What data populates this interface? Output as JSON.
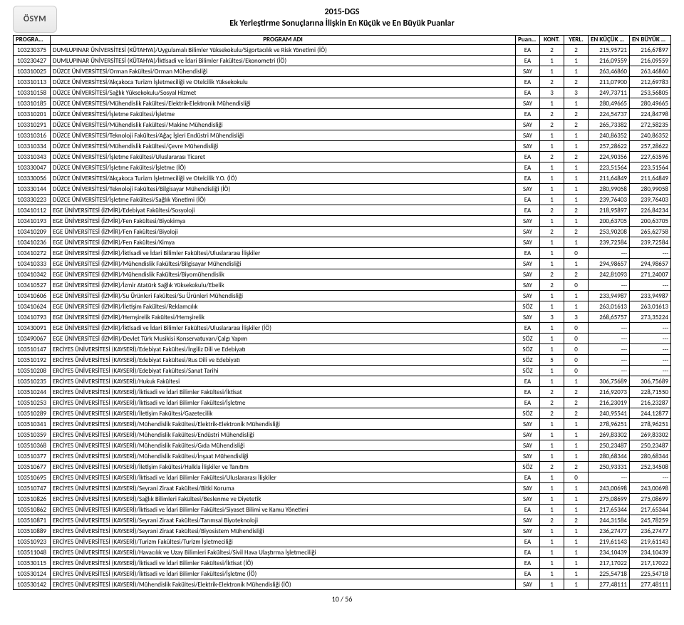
{
  "logo_text": "ÖSYM",
  "title1": "2015-DGS",
  "title2": "Ek Yerleştirme Sonuçlarına İlişkin En Küçük ve En Büyük Puanlar",
  "footer": "10 / 56",
  "headers": {
    "kod": "PROGRAM KODU",
    "adi": "PROGRAM ADI",
    "tur": "Puan Türü",
    "kont": "KONT.",
    "yerl": "YERL.",
    "min": "EN KÜÇÜK PUAN",
    "max": "EN BÜYÜK PUAN"
  },
  "rows": [
    [
      "103230375",
      "DUMLUPINAR ÜNİVERSİTESİ (KÜTAHYA)/Uygulamalı Bilimler Yüksekokulu/Sigortacılık ve Risk Yönetimi (İÖ)",
      "EA",
      "2",
      "2",
      "215,95721",
      "216,67897"
    ],
    [
      "103230427",
      "DUMLUPINAR ÜNİVERSİTESİ (KÜTAHYA)/İktisadi ve İdari Bilimler Fakültesi/Ekonometri (İÖ)",
      "EA",
      "1",
      "1",
      "216,09559",
      "216,09559"
    ],
    [
      "103310025",
      "DÜZCE ÜNİVERSİTESİ/Orman Fakültesi/Orman Mühendisliği",
      "SAY",
      "1",
      "1",
      "263,46860",
      "263,46860"
    ],
    [
      "103310113",
      "DÜZCE ÜNİVERSİTESİ/Akçakoca Turizm İşletmeciliği ve Otelcilik Yüksekokulu",
      "EA",
      "2",
      "2",
      "211,07900",
      "212,69783"
    ],
    [
      "103310158",
      "DÜZCE ÜNİVERSİTESİ/Sağlık Yüksekokulu/Sosyal Hizmet",
      "EA",
      "3",
      "3",
      "249,73711",
      "253,56805"
    ],
    [
      "103310185",
      "DÜZCE ÜNİVERSİTESİ/Mühendislik Fakültesi/Elektrik-Elektronik Mühendisliği",
      "SAY",
      "1",
      "1",
      "280,49665",
      "280,49665"
    ],
    [
      "103310201",
      "DÜZCE ÜNİVERSİTESİ/İşletme Fakültesi/İşletme",
      "EA",
      "2",
      "2",
      "224,54737",
      "224,84798"
    ],
    [
      "103310291",
      "DÜZCE ÜNİVERSİTESİ/Mühendislik Fakültesi/Makine Mühendisliği",
      "SAY",
      "2",
      "2",
      "265,73382",
      "272,58235"
    ],
    [
      "103310316",
      "DÜZCE ÜNİVERSİTESİ/Teknoloji Fakültesi/Ağaç İşleri Endüstri Mühendisliği",
      "SAY",
      "1",
      "1",
      "240,86352",
      "240,86352"
    ],
    [
      "103310334",
      "DÜZCE ÜNİVERSİTESİ/Mühendislik Fakültesi/Çevre Mühendisliği",
      "SAY",
      "1",
      "1",
      "257,28622",
      "257,28622"
    ],
    [
      "103310343",
      "DÜZCE ÜNİVERSİTESİ/İşletme Fakültesi/Uluslararası Ticaret",
      "EA",
      "2",
      "2",
      "224,90356",
      "227,63596"
    ],
    [
      "103330047",
      "DÜZCE ÜNİVERSİTESİ/İşletme Fakültesi/İşletme (İÖ)",
      "EA",
      "1",
      "1",
      "223,51564",
      "223,51564"
    ],
    [
      "103330056",
      "DÜZCE ÜNİVERSİTESİ/Akçakoca Turizm İşletmeciliği ve Otelcilik Y.O. (İÖ)",
      "EA",
      "1",
      "1",
      "211,64849",
      "211,64849"
    ],
    [
      "103330144",
      "DÜZCE ÜNİVERSİTESİ/Teknoloji Fakültesi/Bilgisayar Mühendisliği (İÖ)",
      "SAY",
      "1",
      "1",
      "280,99058",
      "280,99058"
    ],
    [
      "103330223",
      "DÜZCE ÜNİVERSİTESİ/İşletme Fakültesi/Sağlık Yönetimi (İÖ)",
      "EA",
      "1",
      "1",
      "239,76403",
      "239,76403"
    ],
    [
      "103410112",
      "EGE ÜNİVERSİTESİ (İZMİR)/Edebiyat Fakültesi/Sosyoloji",
      "EA",
      "2",
      "2",
      "218,95897",
      "226,84234"
    ],
    [
      "103410193",
      "EGE ÜNİVERSİTESİ (İZMİR)/Fen Fakültesi/Biyokimya",
      "SAY",
      "1",
      "1",
      "200,63705",
      "200,63705"
    ],
    [
      "103410209",
      "EGE ÜNİVERSİTESİ (İZMİR)/Fen Fakültesi/Biyoloji",
      "SAY",
      "2",
      "2",
      "253,90208",
      "265,62758"
    ],
    [
      "103410236",
      "EGE ÜNİVERSİTESİ (İZMİR)/Fen Fakültesi/Kimya",
      "SAY",
      "1",
      "1",
      "239,72584",
      "239,72584"
    ],
    [
      "103410272",
      "EGE ÜNİVERSİTESİ (İZMİR)/İktisadi ve İdari Bilimler Fakültesi/Uluslararası İlişkiler",
      "EA",
      "1",
      "0",
      "---",
      "---"
    ],
    [
      "103410333",
      "EGE ÜNİVERSİTESİ (İZMİR)/Mühendislik Fakültesi/Bilgisayar Mühendisliği",
      "SAY",
      "1",
      "1",
      "294,98657",
      "294,98657"
    ],
    [
      "103410342",
      "EGE ÜNİVERSİTESİ (İZMİR)/Mühendislik Fakültesi/Biyomühendislik",
      "SAY",
      "2",
      "2",
      "242,81093",
      "271,24007"
    ],
    [
      "103410527",
      "EGE ÜNİVERSİTESİ (İZMİR)/İzmir Atatürk Sağlık Yüksekokulu/Ebelik",
      "SAY",
      "2",
      "0",
      "---",
      "---"
    ],
    [
      "103410606",
      "EGE ÜNİVERSİTESİ (İZMİR)/Su Ürünleri Fakültesi/Su Ürünleri Mühendisliği",
      "SAY",
      "1",
      "1",
      "233,94987",
      "233,94987"
    ],
    [
      "103410624",
      "EGE ÜNİVERSİTESİ (İZMİR)/İletişim Fakültesi/Reklamcılık",
      "SÖZ",
      "1",
      "1",
      "263,01613",
      "263,01613"
    ],
    [
      "103410793",
      "EGE ÜNİVERSİTESİ (İZMİR)/Hemşirelik Fakültesi/Hemşirelik",
      "SAY",
      "3",
      "3",
      "268,65757",
      "273,35224"
    ],
    [
      "103430091",
      "EGE ÜNİVERSİTESİ (İZMİR)/İktisadi ve İdari Bilimler Fakültesi/Uluslararası İlişkiler (İÖ)",
      "EA",
      "1",
      "0",
      "---",
      "---"
    ],
    [
      "103490067",
      "EGE ÜNİVERSİTESİ (İZMİR)/Devlet Türk Musikisi Konservatuvarı/Çalgı Yapım",
      "SÖZ",
      "1",
      "0",
      "---",
      "---"
    ],
    [
      "103510147",
      "ERCİYES ÜNİVERSİTESİ (KAYSERİ)/Edebiyat Fakültesi/İngiliz Dili ve Edebiyatı",
      "SÖZ",
      "1",
      "0",
      "---",
      "---"
    ],
    [
      "103510192",
      "ERCİYES ÜNİVERSİTESİ (KAYSERİ)/Edebiyat Fakültesi/Rus Dili ve Edebiyatı",
      "SÖZ",
      "5",
      "0",
      "---",
      "---"
    ],
    [
      "103510208",
      "ERCİYES ÜNİVERSİTESİ (KAYSERİ)/Edebiyat Fakültesi/Sanat Tarihi",
      "SÖZ",
      "1",
      "0",
      "---",
      "---"
    ],
    [
      "103510235",
      "ERCİYES ÜNİVERSİTESİ (KAYSERİ)/Hukuk Fakültesi",
      "EA",
      "1",
      "1",
      "306,75689",
      "306,75689"
    ],
    [
      "103510244",
      "ERCİYES ÜNİVERSİTESİ (KAYSERİ)/İktisadi ve İdari Bilimler Fakültesi/İktisat",
      "EA",
      "2",
      "2",
      "216,92073",
      "228,71550"
    ],
    [
      "103510253",
      "ERCİYES ÜNİVERSİTESİ (KAYSERİ)/İktisadi ve İdari Bilimler Fakültesi/İşletme",
      "EA",
      "2",
      "2",
      "216,23019",
      "216,23287"
    ],
    [
      "103510289",
      "ERCİYES ÜNİVERSİTESİ (KAYSERİ)/İletişim Fakültesi/Gazetecilik",
      "SÖZ",
      "2",
      "2",
      "240,95541",
      "244,12877"
    ],
    [
      "103510341",
      "ERCİYES ÜNİVERSİTESİ (KAYSERİ)/Mühendislik Fakültesi/Elektrik-Elektronik Mühendisliği",
      "SAY",
      "1",
      "1",
      "278,96251",
      "278,96251"
    ],
    [
      "103510359",
      "ERCİYES ÜNİVERSİTESİ (KAYSERİ)/Mühendislik Fakültesi/Endüstri Mühendisliği",
      "SAY",
      "1",
      "1",
      "269,83302",
      "269,83302"
    ],
    [
      "103510368",
      "ERCİYES ÜNİVERSİTESİ (KAYSERİ)/Mühendislik Fakültesi/Gıda Mühendisliği",
      "SAY",
      "1",
      "1",
      "250,23487",
      "250,23487"
    ],
    [
      "103510377",
      "ERCİYES ÜNİVERSİTESİ (KAYSERİ)/Mühendislik Fakültesi/İnşaat Mühendisliği",
      "SAY",
      "1",
      "1",
      "280,68344",
      "280,68344"
    ],
    [
      "103510677",
      "ERCİYES ÜNİVERSİTESİ (KAYSERİ)/İletişim Fakültesi/Halkla İlişkiler ve Tanıtım",
      "SÖZ",
      "2",
      "2",
      "250,93331",
      "252,34508"
    ],
    [
      "103510695",
      "ERCİYES ÜNİVERSİTESİ (KAYSERİ)/İktisadi ve İdari Bilimler Fakültesi/Uluslararası İlişkiler",
      "EA",
      "1",
      "0",
      "---",
      "---"
    ],
    [
      "103510747",
      "ERCİYES ÜNİVERSİTESİ (KAYSERİ)/Seyrani Ziraat Fakültesi/Bitki Koruma",
      "SAY",
      "1",
      "1",
      "243,00698",
      "243,00698"
    ],
    [
      "103510826",
      "ERCİYES ÜNİVERSİTESİ (KAYSERİ)/Sağlık Bilimleri Fakültesi/Beslenme ve Diyetetik",
      "SAY",
      "1",
      "1",
      "275,08699",
      "275,08699"
    ],
    [
      "103510862",
      "ERCİYES ÜNİVERSİTESİ (KAYSERİ)/İktisadi ve İdari Bilimler Fakültesi/Siyaset Bilimi ve Kamu Yönetimi",
      "EA",
      "1",
      "1",
      "217,65344",
      "217,65344"
    ],
    [
      "103510871",
      "ERCİYES ÜNİVERSİTESİ (KAYSERİ)/Seyrani Ziraat Fakültesi/Tarımsal Biyoteknoloji",
      "SAY",
      "2",
      "2",
      "244,31584",
      "245,78259"
    ],
    [
      "103510889",
      "ERCİYES ÜNİVERSİTESİ (KAYSERİ)/Seyrani Ziraat Fakültesi/Biyosistem Mühendisliği",
      "SAY",
      "1",
      "1",
      "236,27477",
      "236,27477"
    ],
    [
      "103510923",
      "ERCİYES ÜNİVERSİTESİ (KAYSERİ)/Turizm Fakültesi/Turizm İşletmeciliği",
      "EA",
      "1",
      "1",
      "219,61143",
      "219,61143"
    ],
    [
      "103511048",
      "ERCİYES ÜNİVERSİTESİ (KAYSERİ)/Havacılık ve Uzay Bilimleri Fakültesi/Sivil Hava Ulaştırma İşletmeciliği",
      "EA",
      "1",
      "1",
      "234,10439",
      "234,10439"
    ],
    [
      "103530115",
      "ERCİYES ÜNİVERSİTESİ (KAYSERİ)/İktisadi ve İdari Bilimler Fakültesi/İktisat (İÖ)",
      "EA",
      "1",
      "1",
      "217,17022",
      "217,17022"
    ],
    [
      "103530124",
      "ERCİYES ÜNİVERSİTESİ (KAYSERİ)/İktisadi ve İdari Bilimler Fakültesi/İşletme (İÖ)",
      "EA",
      "1",
      "1",
      "225,54718",
      "225,54718"
    ],
    [
      "103530142",
      "ERCİYES ÜNİVERSİTESİ (KAYSERİ)/Mühendislik Fakültesi/Elektrik-Elektronik Mühendisliği (İÖ)",
      "SAY",
      "1",
      "1",
      "277,48111",
      "277,48111"
    ]
  ]
}
